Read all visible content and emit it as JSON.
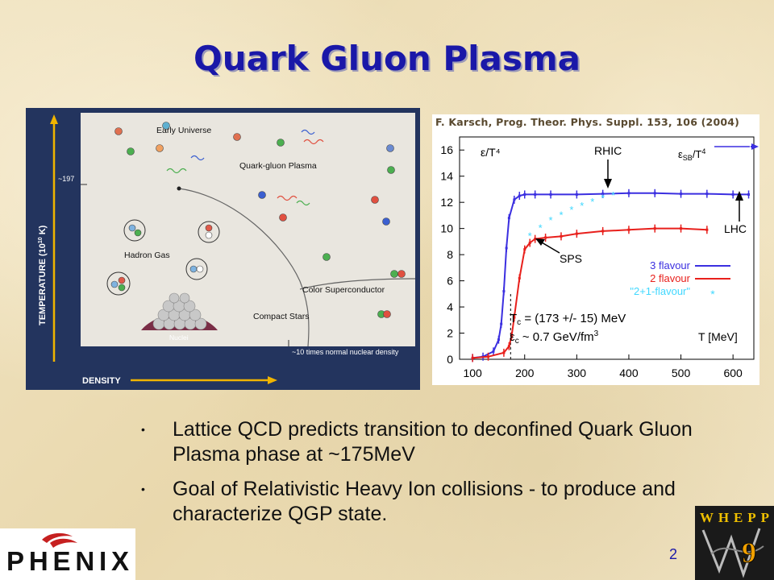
{
  "slide": {
    "title": "Quark Gluon Plasma",
    "page_number": "2",
    "bullets": [
      "Lattice QCD predicts transition to deconfined Quark Gluon Plasma phase at ~175MeV",
      "Goal of Relativistic Heavy Ion collisions - to produce and characterize QGP state."
    ]
  },
  "phase_diagram": {
    "temp_axis_label": "TEMPERATURE (10",
    "temp_axis_exp": "10",
    "temp_axis_unit": " K)",
    "density_axis_label": "DENSITY",
    "tick_197": "~197",
    "region_labels": {
      "early_universe": "Early Universe",
      "qgp": "Quark-gluon Plasma",
      "hadron_gas": "Hadron Gas",
      "color_superconductor": "Color Superconductor",
      "compact_stars": "Compact Stars",
      "nuclei": "Nuclei",
      "density_note": "~10 times normal nuclear density"
    },
    "colors": {
      "frame": "#23345e",
      "panel": "#e8e4dc",
      "axis_arrow": "#f0b400",
      "nucleus": "#7a2d46"
    }
  },
  "citation": "F. Karsch, Prog. Theor. Phys. Suppl. 153, 106 (2004)",
  "logos": {
    "phenix": "PHENIX",
    "whepp": "WHEPP",
    "whepp_number": "9"
  },
  "chart_data": {
    "type": "line",
    "title": "",
    "xlabel": "T [MeV]",
    "ylabel": "ε/T⁴",
    "xlim": [
      75,
      640
    ],
    "ylim": [
      0,
      17
    ],
    "xticks": [
      100,
      200,
      300,
      400,
      500,
      600
    ],
    "yticks": [
      0,
      2,
      4,
      6,
      8,
      10,
      12,
      14,
      16
    ],
    "grid": false,
    "legend_position": "bottom-right",
    "series": [
      {
        "name": "3 flavour",
        "color": "#3b2fe0",
        "x": [
          100,
          120,
          140,
          150,
          155,
          160,
          165,
          170,
          180,
          190,
          200,
          220,
          250,
          300,
          350,
          400,
          450,
          500,
          550,
          600,
          630
        ],
        "y": [
          0.1,
          0.2,
          0.6,
          1.5,
          2.7,
          5.2,
          8.5,
          10.8,
          12.2,
          12.5,
          12.6,
          12.6,
          12.6,
          12.6,
          12.65,
          12.7,
          12.7,
          12.65,
          12.65,
          12.6,
          12.6
        ]
      },
      {
        "name": "2 flavour",
        "color": "#e8201c",
        "x": [
          100,
          130,
          160,
          170,
          175,
          180,
          190,
          200,
          210,
          220,
          240,
          270,
          300,
          350,
          400,
          450,
          500,
          550
        ],
        "y": [
          0.1,
          0.2,
          0.5,
          1.0,
          1.8,
          3.2,
          6.2,
          8.4,
          8.9,
          9.2,
          9.3,
          9.4,
          9.6,
          9.8,
          9.9,
          10.0,
          10.0,
          9.9
        ]
      },
      {
        "name": "\"2+1-flavour\"",
        "color": "#41d8ff",
        "x": [
          210,
          230,
          250,
          270,
          290,
          310,
          330,
          350,
          370
        ],
        "y": [
          9.4,
          10.0,
          10.6,
          11.0,
          11.4,
          11.7,
          12.0,
          12.3,
          12.5
        ]
      }
    ],
    "annotations": {
      "sb_label": "ε",
      "sb_sub": "SB",
      "sb_tail": "/T",
      "rhic": "RHIC",
      "lhc": "LHC",
      "sps": "SPS",
      "tc_line": "T",
      "tc_sub": "c",
      "tc_value": " = (173 +/- 15) MeV",
      "ec_sub": "c",
      "ec_value": " ~ 0.7 GeV/fm",
      "ec_sup": "3",
      "sb_value": 15.7
    }
  }
}
